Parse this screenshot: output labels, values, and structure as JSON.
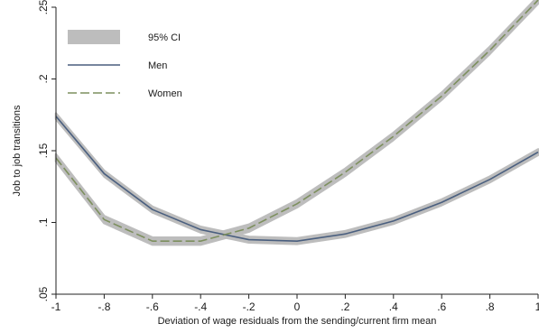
{
  "chart_data": {
    "type": "line",
    "xlabel": "Deviation of wage residuals from the sending/current firm mean",
    "ylabel": "Job to job transitions",
    "xlim": [
      -1,
      1
    ],
    "ylim": [
      0.05,
      0.25
    ],
    "x_ticks": [
      -1,
      -0.8,
      -0.6,
      -0.4,
      -0.2,
      0,
      0.2,
      0.4,
      0.6,
      0.8,
      1
    ],
    "x_tick_labels": [
      "-1",
      "-.8",
      "-.6",
      "-.4",
      "-.2",
      "0",
      ".2",
      ".4",
      ".6",
      ".8",
      "1"
    ],
    "y_ticks": [
      0.05,
      0.1,
      0.15,
      0.2,
      0.25
    ],
    "y_tick_labels": [
      ".05",
      ".1",
      ".15",
      ".2",
      ".25"
    ],
    "grid": false,
    "legend_position": "top-left",
    "legend": {
      "ci_label": "95% CI",
      "ci_color": "#bdbdbd"
    },
    "x": [
      -1,
      -0.8,
      -0.6,
      -0.4,
      -0.2,
      0,
      0.2,
      0.4,
      0.6,
      0.8,
      1
    ],
    "series": [
      {
        "name": "Men",
        "color": "#4a5f7f",
        "dash": "solid",
        "values": [
          0.174,
          0.134,
          0.109,
          0.095,
          0.088,
          0.087,
          0.092,
          0.101,
          0.114,
          0.13,
          0.149
        ],
        "ci_halfwidth": 0.002
      },
      {
        "name": "Women",
        "color": "#7d8f5e",
        "dash": "dashed",
        "values": [
          0.145,
          0.102,
          0.087,
          0.087,
          0.096,
          0.113,
          0.135,
          0.16,
          0.188,
          0.22,
          0.255
        ],
        "ci_halfwidth": 0.0025
      }
    ]
  }
}
